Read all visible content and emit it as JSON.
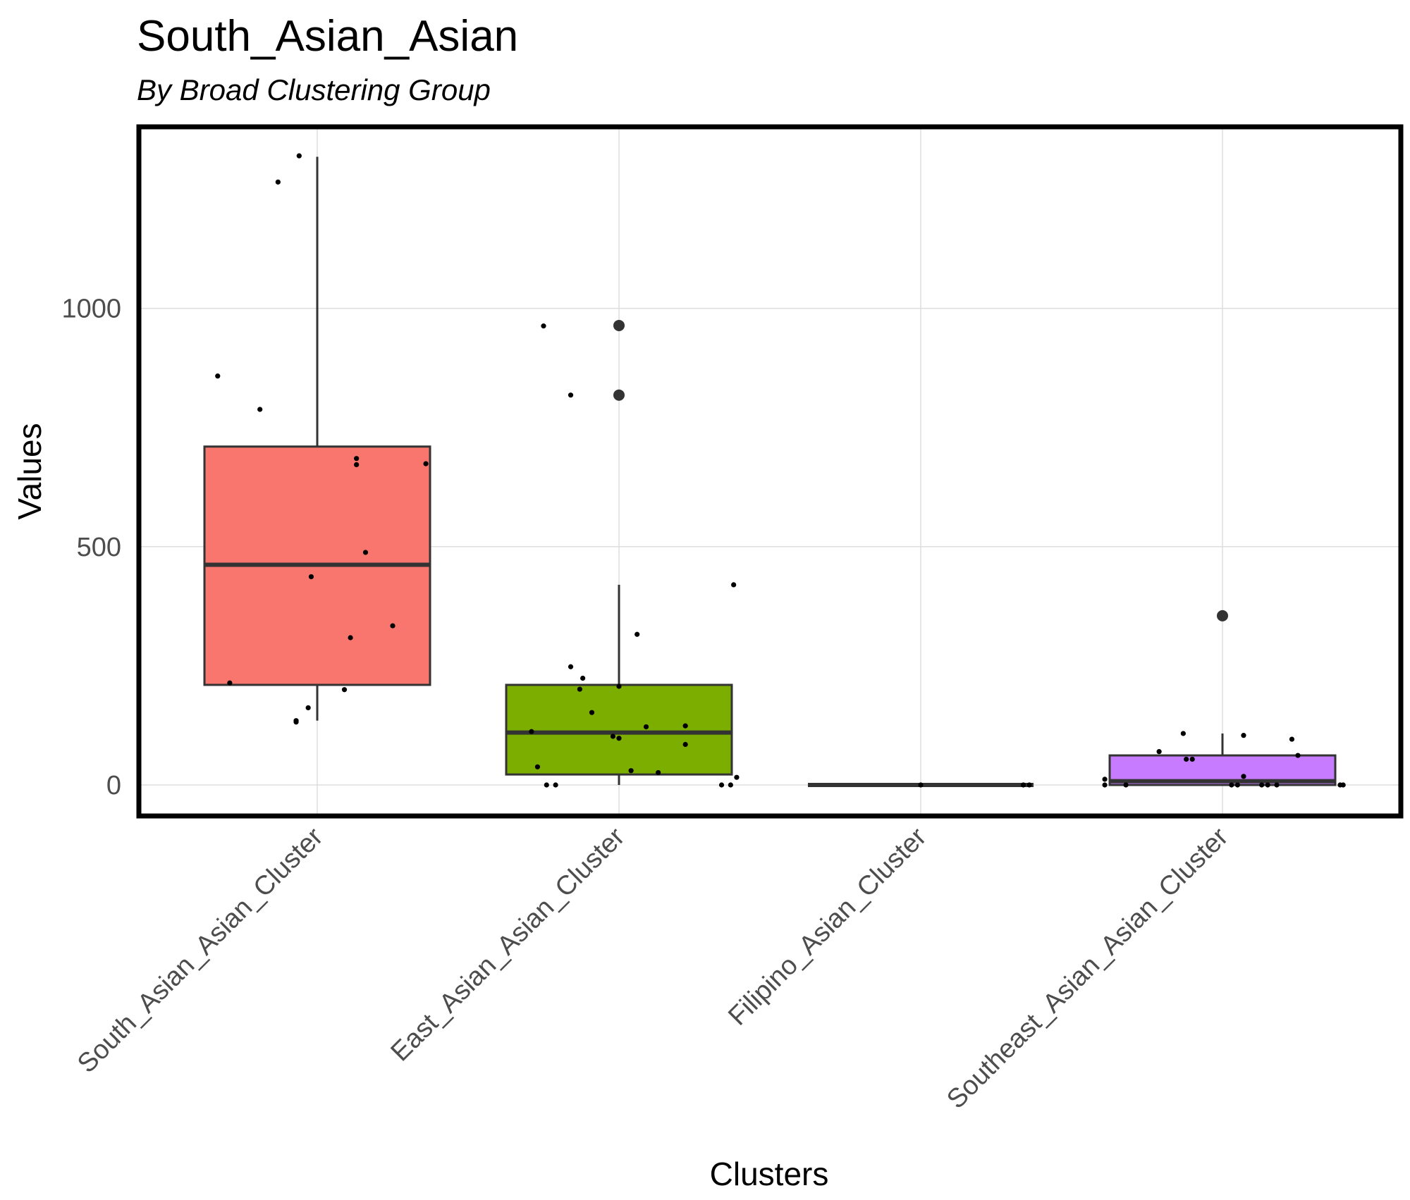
{
  "chart_data": {
    "type": "box",
    "title": "South_Asian_Asian",
    "subtitle": "By Broad Clustering Group",
    "xlabel": "Clusters",
    "ylabel": "Values",
    "ylim": [
      -60,
      1380
    ],
    "yticks": [
      0,
      500,
      1000
    ],
    "grid": true,
    "categories": [
      "South_Asian_Asian_Cluster",
      "East_Asian_Asian_Cluster",
      "Filipino_Asian_Cluster",
      "Southeast_Asian_Asian_Cluster"
    ],
    "colors": [
      "#F8766D",
      "#7CAE00",
      "#00BFC4",
      "#C77CFF"
    ],
    "boxes": [
      {
        "q1": 210,
        "median": 462,
        "q3": 710,
        "whisker_low": 135,
        "whisker_high": 1318,
        "outliers": []
      },
      {
        "q1": 22,
        "median": 110,
        "q3": 210,
        "whisker_low": 0,
        "whisker_high": 420,
        "outliers": [
          964,
          818
        ]
      },
      {
        "q1": 0,
        "median": 0,
        "q3": 0,
        "whisker_low": 0,
        "whisker_high": 0,
        "outliers": []
      },
      {
        "q1": 0,
        "median": 8,
        "q3": 62,
        "whisker_low": 0,
        "whisker_high": 108,
        "outliers": [
          355
        ]
      }
    ],
    "points": [
      [
        {
          "dx": -0.06,
          "y": 1320
        },
        {
          "dx": -0.13,
          "y": 1265
        },
        {
          "dx": -0.33,
          "y": 858
        },
        {
          "dx": -0.19,
          "y": 788
        },
        {
          "dx": 0.13,
          "y": 685
        },
        {
          "dx": 0.13,
          "y": 672
        },
        {
          "dx": 0.36,
          "y": 674
        },
        {
          "dx": 0.16,
          "y": 488
        },
        {
          "dx": -0.02,
          "y": 437
        },
        {
          "dx": 0.25,
          "y": 334
        },
        {
          "dx": 0.11,
          "y": 309
        },
        {
          "dx": -0.29,
          "y": 214
        },
        {
          "dx": 0.09,
          "y": 200
        },
        {
          "dx": -0.03,
          "y": 162
        },
        {
          "dx": -0.07,
          "y": 135
        },
        {
          "dx": -0.07,
          "y": 132
        }
      ],
      [
        {
          "dx": -0.25,
          "y": 963
        },
        {
          "dx": -0.16,
          "y": 818
        },
        {
          "dx": 0.38,
          "y": 420
        },
        {
          "dx": 0.06,
          "y": 316
        },
        {
          "dx": -0.16,
          "y": 248
        },
        {
          "dx": -0.12,
          "y": 224
        },
        {
          "dx": -0.13,
          "y": 201
        },
        {
          "dx": 0.0,
          "y": 207
        },
        {
          "dx": -0.09,
          "y": 152
        },
        {
          "dx": 0.22,
          "y": 124
        },
        {
          "dx": 0.09,
          "y": 122
        },
        {
          "dx": -0.29,
          "y": 112
        },
        {
          "dx": -0.02,
          "y": 102
        },
        {
          "dx": 0.0,
          "y": 98
        },
        {
          "dx": 0.22,
          "y": 85
        },
        {
          "dx": -0.27,
          "y": 38
        },
        {
          "dx": 0.04,
          "y": 30
        },
        {
          "dx": 0.13,
          "y": 26
        },
        {
          "dx": 0.39,
          "y": 16
        },
        {
          "dx": -0.24,
          "y": 0
        },
        {
          "dx": -0.21,
          "y": 0
        },
        {
          "dx": 0.34,
          "y": 0
        },
        {
          "dx": 0.37,
          "y": 0
        }
      ],
      [
        {
          "dx": 0.34,
          "y": 0
        },
        {
          "dx": 0.36,
          "y": 0
        },
        {
          "dx": 0.0,
          "y": 0
        }
      ],
      [
        {
          "dx": -0.13,
          "y": 108
        },
        {
          "dx": 0.07,
          "y": 104
        },
        {
          "dx": 0.23,
          "y": 96
        },
        {
          "dx": -0.21,
          "y": 70
        },
        {
          "dx": 0.25,
          "y": 62
        },
        {
          "dx": -0.1,
          "y": 54
        },
        {
          "dx": -0.12,
          "y": 54
        },
        {
          "dx": 0.07,
          "y": 18
        },
        {
          "dx": -0.39,
          "y": 12
        },
        {
          "dx": -0.39,
          "y": 0
        },
        {
          "dx": -0.32,
          "y": 0
        },
        {
          "dx": 0.03,
          "y": 0
        },
        {
          "dx": 0.05,
          "y": 0
        },
        {
          "dx": 0.13,
          "y": 0
        },
        {
          "dx": 0.15,
          "y": 0
        },
        {
          "dx": 0.18,
          "y": 0
        },
        {
          "dx": 0.39,
          "y": 0
        },
        {
          "dx": 0.4,
          "y": 0
        }
      ]
    ]
  }
}
